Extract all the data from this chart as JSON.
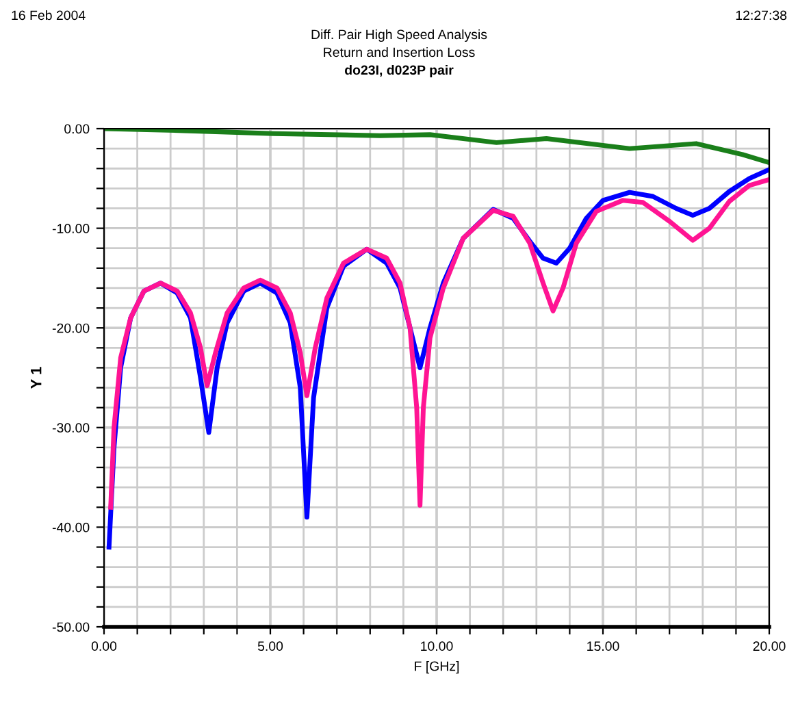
{
  "chart_data": {
    "type": "line",
    "title": "Diff. Pair High Speed Analysis",
    "subtitle": "Return and Insertion Loss",
    "annotations": [
      "16 Feb 2004",
      "12:27:38",
      "do23I, d023P pair"
    ],
    "xlabel": "F [GHz]",
    "ylabel": "Y 1",
    "xlim": [
      0,
      20
    ],
    "ylim": [
      -50,
      0
    ],
    "xticks": [
      {
        "value": 0,
        "label": "0.00"
      },
      {
        "value": 1,
        "label": null
      },
      {
        "value": 2,
        "label": null
      },
      {
        "value": 3,
        "label": null
      },
      {
        "value": 4,
        "label": null
      },
      {
        "value": 5,
        "label": "5.00"
      },
      {
        "value": 6,
        "label": null
      },
      {
        "value": 7,
        "label": null
      },
      {
        "value": 8,
        "label": null
      },
      {
        "value": 9,
        "label": null
      },
      {
        "value": 10,
        "label": "10.00"
      },
      {
        "value": 11,
        "label": null
      },
      {
        "value": 12,
        "label": null
      },
      {
        "value": 13,
        "label": null
      },
      {
        "value": 14,
        "label": null
      },
      {
        "value": 15,
        "label": "15.00"
      },
      {
        "value": 16,
        "label": null
      },
      {
        "value": 17,
        "label": null
      },
      {
        "value": 18,
        "label": null
      },
      {
        "value": 19,
        "label": null
      },
      {
        "value": 20,
        "label": "20.00"
      }
    ],
    "yticks": [
      {
        "value": -50,
        "label": "-50.00"
      },
      {
        "value": -48,
        "label": null
      },
      {
        "value": -46,
        "label": null
      },
      {
        "value": -44,
        "label": null
      },
      {
        "value": -42,
        "label": null
      },
      {
        "value": -40,
        "label": "-40.00"
      },
      {
        "value": -38,
        "label": null
      },
      {
        "value": -36,
        "label": null
      },
      {
        "value": -34,
        "label": null
      },
      {
        "value": -32,
        "label": null
      },
      {
        "value": -30,
        "label": "-30.00"
      },
      {
        "value": -28,
        "label": null
      },
      {
        "value": -26,
        "label": null
      },
      {
        "value": -24,
        "label": null
      },
      {
        "value": -22,
        "label": null
      },
      {
        "value": -20,
        "label": "-20.00"
      },
      {
        "value": -18,
        "label": null
      },
      {
        "value": -16,
        "label": null
      },
      {
        "value": -14,
        "label": null
      },
      {
        "value": -12,
        "label": null
      },
      {
        "value": -10,
        "label": "-10.00"
      },
      {
        "value": -8,
        "label": null
      },
      {
        "value": -6,
        "label": null
      },
      {
        "value": -4,
        "label": null
      },
      {
        "value": -2,
        "label": null
      },
      {
        "value": 0,
        "label": "0.00"
      }
    ],
    "grid": true,
    "legend": false,
    "line_style": "solid",
    "marker": "none",
    "series": [
      {
        "color": "#1a7f1a",
        "x": [
          0,
          2.4,
          5.1,
          8.3,
          9.8,
          11.8,
          13.3,
          15.8,
          17.8,
          19.2,
          20
        ],
        "values": [
          0,
          -0.2,
          -0.5,
          -0.7,
          -0.6,
          -1.4,
          -1.0,
          -2.0,
          -1.5,
          -2.6,
          -3.4
        ]
      },
      {
        "color": "#0000ff",
        "x": [
          0.15,
          0.3,
          0.5,
          0.8,
          1.2,
          1.7,
          2.2,
          2.6,
          2.9,
          3.15,
          3.4,
          3.7,
          4.2,
          4.7,
          5.2,
          5.6,
          5.9,
          6.1,
          6.3,
          6.7,
          7.2,
          7.9,
          8.5,
          8.9,
          9.2,
          9.5,
          9.8,
          10.2,
          10.8,
          11.7,
          12.3,
          12.8,
          13.2,
          13.6,
          14.0,
          14.5,
          15.0,
          15.8,
          16.5,
          17.2,
          17.7,
          18.2,
          18.8,
          19.4,
          20
        ],
        "values": [
          -42,
          -32,
          -24,
          -19,
          -16.3,
          -15.5,
          -16.5,
          -19,
          -25,
          -30.5,
          -24,
          -19.5,
          -16.3,
          -15.5,
          -16.5,
          -19.5,
          -26,
          -39,
          -27,
          -18,
          -13.8,
          -12.1,
          -13.5,
          -16,
          -20,
          -24,
          -20,
          -15.5,
          -11,
          -8.1,
          -9,
          -11.3,
          -13,
          -13.5,
          -12,
          -9,
          -7.2,
          -6.4,
          -6.8,
          -8.0,
          -8.7,
          -8,
          -6.3,
          -5,
          -4.1
        ]
      },
      {
        "color": "#ff1493",
        "x": [
          0.2,
          0.3,
          0.5,
          0.8,
          1.2,
          1.7,
          2.2,
          2.6,
          2.9,
          3.1,
          3.35,
          3.7,
          4.2,
          4.7,
          5.2,
          5.6,
          5.9,
          6.1,
          6.35,
          6.7,
          7.2,
          7.9,
          8.5,
          8.9,
          9.2,
          9.4,
          9.5,
          9.6,
          9.8,
          10.2,
          10.8,
          11.7,
          12.3,
          12.8,
          13.2,
          13.5,
          13.8,
          14.2,
          14.8,
          15.6,
          16.2,
          17.0,
          17.7,
          18.2,
          18.8,
          19.4,
          20
        ],
        "values": [
          -38,
          -30,
          -23,
          -19,
          -16.3,
          -15.5,
          -16.3,
          -18.5,
          -22,
          -25.8,
          -22.5,
          -18.5,
          -16,
          -15.2,
          -16,
          -18.5,
          -22.5,
          -26.8,
          -22,
          -17,
          -13.5,
          -12.1,
          -13,
          -15.5,
          -20,
          -28,
          -37.8,
          -28,
          -21,
          -16,
          -11,
          -8.2,
          -8.8,
          -11.5,
          -15.5,
          -18.3,
          -16,
          -11.5,
          -8.3,
          -7.2,
          -7.4,
          -9.3,
          -11.2,
          -10,
          -7.3,
          -5.7,
          -5.1
        ]
      }
    ]
  }
}
